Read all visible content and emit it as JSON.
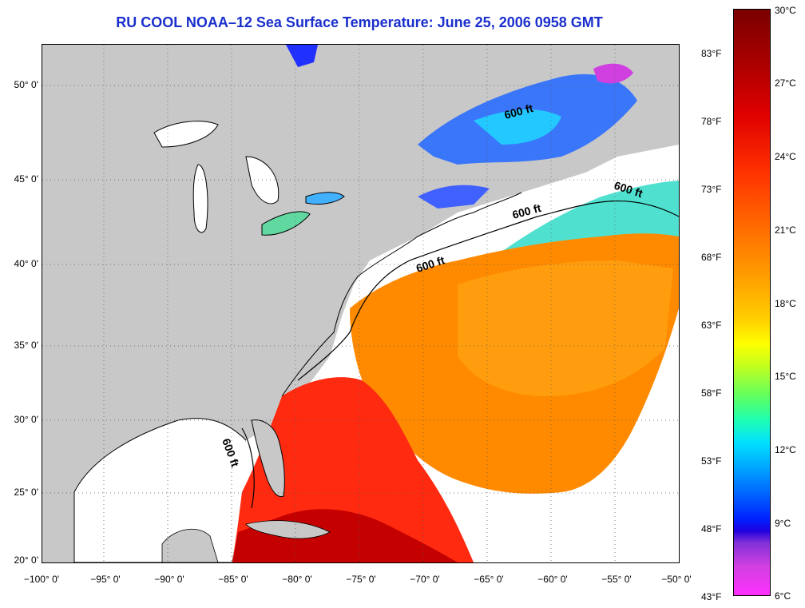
{
  "title": "RU COOL  NOAA–12  Sea Surface Temperature:  June 25, 2006 0958 GMT",
  "lat_labels": [
    "50° 0'",
    "45° 0'",
    "40° 0'",
    "35° 0'",
    "30° 0'",
    "25° 0'",
    "20° 0'"
  ],
  "lon_labels": [
    "−100° 0'",
    "−95° 0'",
    "−90° 0'",
    "−85° 0'",
    "−80° 0'",
    "−75° 0'",
    "−70° 0'",
    "−65° 0'",
    "−60° 0'",
    "−55° 0'",
    "−50° 0'"
  ],
  "contour_labels": [
    "600 ft",
    "600 ft",
    "600 ft",
    "600 ft",
    "600 ft"
  ],
  "colorbar": {
    "celsius_labels": [
      "30°C",
      "27°C",
      "24°C",
      "21°C",
      "18°C",
      "15°C",
      "12°C",
      "9°C",
      "6°C"
    ],
    "fahrenheit_labels": [
      "83°F",
      "78°F",
      "73°F",
      "68°F",
      "63°F",
      "58°F",
      "53°F",
      "48°F",
      "43°F"
    ]
  },
  "colors": {
    "land": "#c8c8c8",
    "no_data": "#ffffff",
    "title": "#1a2fcc"
  }
}
